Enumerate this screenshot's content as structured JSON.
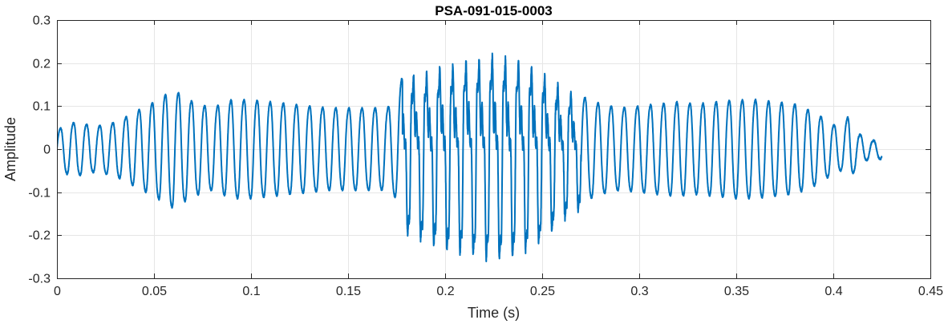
{
  "chart_data": {
    "type": "line",
    "title": "PSA-091-015-0003",
    "xlabel": "Time (s)",
    "ylabel": "Amplitude",
    "xlim": [
      0,
      0.45
    ],
    "ylim": [
      -0.3,
      0.3
    ],
    "grid": true,
    "legend": "none",
    "x_ticks": [
      0,
      0.05,
      0.1,
      0.15,
      0.2,
      0.25,
      0.3,
      0.35,
      0.4,
      0.45
    ],
    "x_tick_labels": [
      "0",
      "0.05",
      "0.1",
      "0.15",
      "0.2",
      "0.25",
      "0.3",
      "0.35",
      "0.4",
      "0.45"
    ],
    "y_ticks": [
      -0.3,
      -0.2,
      -0.1,
      0,
      0.1,
      0.2,
      0.3
    ],
    "y_tick_labels": [
      "-0.3",
      "-0.2",
      "-0.1",
      "0",
      "0.1",
      "0.2",
      "0.3"
    ],
    "colors": {
      "series": "#0072BD",
      "grid": "#e6e6e6",
      "axes": "#262626"
    },
    "series": [
      {
        "name": "",
        "sample_step": 0.001,
        "envelope_time": [
          0,
          0.005,
          0.01,
          0.02,
          0.03,
          0.04,
          0.05,
          0.06,
          0.065,
          0.07,
          0.08,
          0.09,
          0.1,
          0.11,
          0.12,
          0.13,
          0.14,
          0.15,
          0.16,
          0.17,
          0.175,
          0.178,
          0.185,
          0.19,
          0.2,
          0.21,
          0.22,
          0.225,
          0.23,
          0.24,
          0.25,
          0.26,
          0.27,
          0.28,
          0.29,
          0.3,
          0.31,
          0.32,
          0.33,
          0.34,
          0.35,
          0.36,
          0.37,
          0.38,
          0.39,
          0.4,
          0.405,
          0.408,
          0.412,
          0.42,
          0.425
        ],
        "envelope_amplitude": [
          0.045,
          0.06,
          0.065,
          0.055,
          0.065,
          0.09,
          0.115,
          0.145,
          0.13,
          0.115,
          0.1,
          0.12,
          0.12,
          0.115,
          0.11,
          0.105,
          0.1,
          0.1,
          0.1,
          0.1,
          0.12,
          0.18,
          0.2,
          0.2,
          0.22,
          0.23,
          0.24,
          0.25,
          0.24,
          0.23,
          0.2,
          0.16,
          0.13,
          0.11,
          0.1,
          0.105,
          0.11,
          0.115,
          0.11,
          0.115,
          0.12,
          0.12,
          0.115,
          0.11,
          0.09,
          0.06,
          0.05,
          0.085,
          0.04,
          0.02,
          0.025
        ],
        "fundamental_hz": 148,
        "dc_offset": 0.0
      }
    ]
  }
}
